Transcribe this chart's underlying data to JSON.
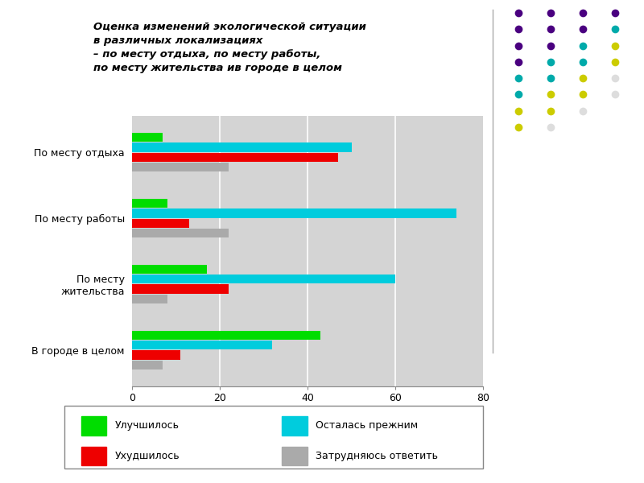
{
  "categories": [
    "По месту отдыха",
    "По месту работы",
    "По месту\nжительства",
    "В городе в целом"
  ],
  "series": {
    "Улучшилось": [
      7,
      8,
      17,
      43
    ],
    "Осталась прежним": [
      50,
      74,
      60,
      32
    ],
    "Ухудшилось": [
      47,
      13,
      22,
      11
    ],
    "Затрудняюсь ответить": [
      22,
      22,
      8,
      7
    ]
  },
  "colors": {
    "Улучшилось": "#00dd00",
    "Осталась прежним": "#00ccdd",
    "Ухудшилось": "#ee0000",
    "Затрудняюсь ответить": "#aaaaaa"
  },
  "title_line1": "Оценка изменений экологической ситуации",
  "title_line2": "в различных локализациях",
  "title_line3": "– по месту отдыха, по месту работы,",
  "title_line4": "по месту жительства ив городе в целом",
  "xlim": [
    0,
    80
  ],
  "figure_bg": "#ffffff",
  "chart_bg": "#d4d4d4",
  "dot_grid": [
    [
      "#4a0080",
      "#4a0080",
      "#4a0080",
      "#4a0080"
    ],
    [
      "#4a0080",
      "#4a0080",
      "#4a0080",
      "#00aaaa"
    ],
    [
      "#4a0080",
      "#4a0080",
      "#00aaaa",
      "#cccc00"
    ],
    [
      "#4a0080",
      "#00aaaa",
      "#00aaaa",
      "#cccc00"
    ],
    [
      "#00aaaa",
      "#00aaaa",
      "#cccc00",
      "#dddddd"
    ],
    [
      "#00aaaa",
      "#cccc00",
      "#cccc00",
      "#dddddd"
    ],
    [
      "#cccc00",
      "#cccc00",
      "#dddddd",
      null
    ],
    [
      "#cccc00",
      "#dddddd",
      null,
      null
    ]
  ],
  "legend_labels": [
    "Улучшилось",
    "Осталась прежним",
    "Ухудшилось",
    "Затрудняюсь ответить"
  ]
}
